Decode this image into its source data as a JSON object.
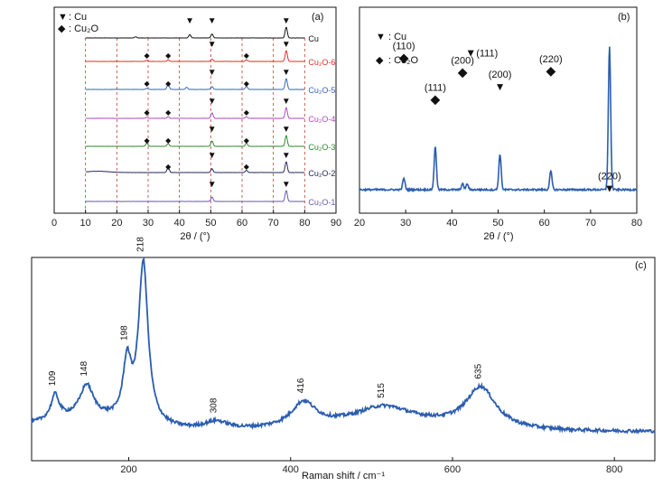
{
  "chart_data": [
    {
      "panel": "(a)",
      "type": "line",
      "xlabel": "2θ / (°)",
      "xlim": [
        0,
        90
      ],
      "xticks": [
        0,
        10,
        20,
        30,
        40,
        50,
        60,
        70,
        80,
        90
      ],
      "reference_lines": [
        10,
        20,
        30,
        40,
        50,
        60,
        70,
        80
      ],
      "legend": [
        {
          "symbol": "▼",
          "label": ": Cu"
        },
        {
          "symbol": "◆",
          "label": ": Cu₂O"
        }
      ],
      "series": [
        {
          "name": "Cu",
          "color": "#111111",
          "cu_peaks": [
            43.3,
            50.4,
            74.1
          ],
          "cu2o_peaks": [],
          "peaks": [
            [
              26.0,
              0.1
            ],
            [
              43.3,
              0.3
            ],
            [
              50.4,
              0.35
            ],
            [
              74.1,
              1.0
            ]
          ],
          "bump": 0
        },
        {
          "name": "Cu₂O-6",
          "color": "#e0302a",
          "cu_peaks": [
            50.4,
            74.1
          ],
          "cu2o_peaks": [
            29.6,
            36.4,
            61.4
          ],
          "peaks": [
            [
              29.6,
              0.1
            ],
            [
              36.4,
              0.15
            ],
            [
              61.4,
              0.15
            ],
            [
              50.4,
              0.2
            ],
            [
              74.1,
              1.0
            ]
          ],
          "bump": 0
        },
        {
          "name": "Cu₂O-5",
          "color": "#3a66b8",
          "cu_peaks": [
            50.4,
            74.1
          ],
          "cu2o_peaks": [
            29.6,
            36.4,
            61.4
          ],
          "peaks": [
            [
              29.6,
              0.1
            ],
            [
              36.4,
              0.5
            ],
            [
              42.3,
              0.2
            ],
            [
              50.4,
              0.25
            ],
            [
              61.4,
              0.3
            ],
            [
              74.1,
              1.0
            ]
          ],
          "bump": 0
        },
        {
          "name": "Cu₂O-4",
          "color": "#b04cc0",
          "cu_peaks": [
            50.4,
            74.1
          ],
          "cu2o_peaks": [
            29.6,
            36.4,
            61.4
          ],
          "peaks": [
            [
              29.6,
              0.1
            ],
            [
              36.4,
              0.15
            ],
            [
              50.4,
              0.5
            ],
            [
              61.4,
              0.15
            ],
            [
              74.1,
              1.0
            ]
          ],
          "bump": 0
        },
        {
          "name": "Cu₂O-3",
          "color": "#2f8a2f",
          "cu_peaks": [
            50.4,
            74.1
          ],
          "cu2o_peaks": [
            29.6,
            36.4,
            61.4
          ],
          "peaks": [
            [
              29.6,
              0.3
            ],
            [
              36.4,
              0.25
            ],
            [
              50.4,
              0.5
            ],
            [
              61.4,
              0.3
            ],
            [
              74.1,
              1.0
            ]
          ],
          "bump": 0
        },
        {
          "name": "Cu₂O-2",
          "color": "#2b2b5e",
          "cu_peaks": [
            50.4,
            74.1
          ],
          "cu2o_peaks": [
            36.4,
            61.4
          ],
          "peaks": [
            [
              36.4,
              0.5
            ],
            [
              50.4,
              0.35
            ],
            [
              61.4,
              0.2
            ],
            [
              74.1,
              1.0
            ]
          ],
          "bump": 1
        },
        {
          "name": "Cu₂O-1",
          "color": "#6a5ab0",
          "cu_peaks": [
            50.4,
            74.1
          ],
          "cu2o_peaks": [],
          "peaks": [
            [
              50.4,
              0.4
            ],
            [
              74.1,
              1.0
            ]
          ],
          "bump": 0
        }
      ]
    },
    {
      "panel": "(b)",
      "type": "line",
      "xlabel": "2θ / (°)",
      "xlim": [
        20,
        80
      ],
      "xticks": [
        20,
        30,
        40,
        50,
        60,
        70,
        80
      ],
      "legend": [
        {
          "symbol": "▼",
          "label": ": Cu"
        },
        {
          "symbol": "◆",
          "label": ": Cu₂O"
        }
      ],
      "color": "#2a5db0",
      "peaks": [
        [
          29.6,
          0.08
        ],
        [
          36.4,
          0.3
        ],
        [
          42.3,
          0.04
        ],
        [
          43.3,
          0.04
        ],
        [
          50.4,
          0.25
        ],
        [
          61.4,
          0.13
        ],
        [
          74.1,
          1.0
        ]
      ],
      "annotations": [
        {
          "x": 29.6,
          "label": "(110)",
          "phase": "Cu₂O",
          "marker": "diamond",
          "level": 0.92
        },
        {
          "x": 36.4,
          "label": "(111)",
          "phase": "Cu₂O",
          "marker": "diamond",
          "level": 0.63
        },
        {
          "x": 42.3,
          "label": "(200)",
          "phase": "Cu₂O",
          "marker": "diamond",
          "level": 0.82
        },
        {
          "x": 43.3,
          "label": "(111)",
          "phase": "Cu",
          "marker": "tri",
          "level": 0.96
        },
        {
          "x": 50.4,
          "label": "(200)",
          "phase": "Cu",
          "marker": "tri",
          "level": 0.72
        },
        {
          "x": 61.4,
          "label": "(220)",
          "phase": "Cu₂O",
          "marker": "diamond",
          "level": 0.83
        },
        {
          "x": 74.1,
          "label": "(220)",
          "phase": "Cu",
          "marker": "tri",
          "level": 0.01
        }
      ]
    },
    {
      "panel": "(c)",
      "type": "line",
      "xlabel": "Raman shift / cm⁻¹",
      "xlim": [
        80,
        850
      ],
      "xticks": [
        200,
        400,
        600,
        800
      ],
      "color": "#2a5db0",
      "peaks": [
        [
          109,
          0.15
        ],
        [
          148,
          0.2
        ],
        [
          198,
          0.35
        ],
        [
          218,
          1.0
        ],
        [
          308,
          0.05
        ],
        [
          416,
          0.15
        ],
        [
          515,
          0.1
        ],
        [
          635,
          0.25
        ]
      ],
      "peak_labels": [
        109,
        148,
        198,
        218,
        308,
        416,
        515,
        635
      ]
    }
  ]
}
